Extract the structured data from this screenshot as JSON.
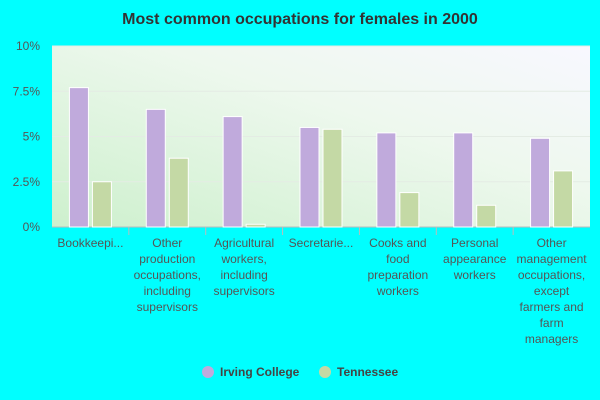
{
  "chart_data": {
    "type": "bar",
    "title": "Most common occupations for females in 2000",
    "categories": [
      "Bookkeepi...",
      "Other production occupations, including supervisors",
      "Agricultural workers, including supervisors",
      "Secretarie...",
      "Cooks and food preparation workers",
      "Personal appearance workers",
      "Other management occupations, except farmers and farm managers"
    ],
    "series": [
      {
        "name": "Irving College",
        "color": "#c0aadc",
        "values": [
          7.7,
          6.5,
          6.1,
          5.5,
          5.2,
          5.2,
          4.9
        ]
      },
      {
        "name": "Tennessee",
        "color": "#c4d9a5",
        "values": [
          2.5,
          3.8,
          0.15,
          5.4,
          1.9,
          1.2,
          3.1
        ]
      }
    ],
    "ylim": [
      0,
      10
    ],
    "yticks": [
      {
        "value": 0,
        "label": "0%"
      },
      {
        "value": 2.5,
        "label": "2.5%"
      },
      {
        "value": 5,
        "label": "5%"
      },
      {
        "value": 7.5,
        "label": "7.5%"
      },
      {
        "value": 10,
        "label": "10%"
      }
    ],
    "grid": true,
    "legend": "bottom"
  }
}
